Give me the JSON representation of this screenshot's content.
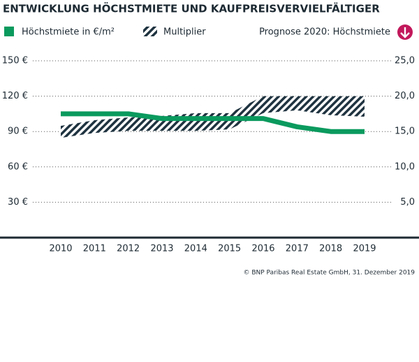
{
  "chart_data": {
    "type": "line",
    "title": "ENTWICKLUNG HÖCHSTMIETE UND KAUFPREISVERVIELFÄLTIGER",
    "categories": [
      "2010",
      "2011",
      "2012",
      "2013",
      "2014",
      "2015",
      "2016",
      "2017",
      "2018",
      "2019"
    ],
    "series": [
      {
        "name": "Höchstmiete in €/m²",
        "color": "#0a9a5e",
        "values": [
          105,
          105,
          105,
          101,
          101,
          101,
          101,
          94,
          90,
          90
        ]
      },
      {
        "name": "Multiplier",
        "type": "band",
        "color": "#1f3340",
        "axis": "y2",
        "low": [
          14.1,
          14.8,
          15.1,
          15.1,
          15.1,
          15.3,
          17.6,
          18.0,
          17.3,
          17.1
        ],
        "high": [
          15.8,
          16.6,
          17.0,
          17.2,
          17.6,
          17.6,
          20.0,
          20.0,
          20.0,
          20.0
        ]
      }
    ],
    "ylim": [
      0,
      150
    ],
    "yticks": [
      {
        "value": 30,
        "label": "30 €"
      },
      {
        "value": 60,
        "label": "60 €"
      },
      {
        "value": 90,
        "label": "90 €"
      },
      {
        "value": 120,
        "label": "120 €"
      },
      {
        "value": 150,
        "label": "150 €"
      }
    ],
    "y2lim": [
      0,
      25
    ],
    "y2ticks": [
      {
        "value": 5,
        "label": "5,0"
      },
      {
        "value": 10,
        "label": "10,0"
      },
      {
        "value": 15,
        "label": "15,0"
      },
      {
        "value": 20,
        "label": "20,0"
      },
      {
        "value": 25,
        "label": "25,0"
      }
    ],
    "grid": true,
    "forecast_label": "Prognose 2020: Höchstmiete",
    "source": "© BNP Paribas Real Estate GmbH, 31. Dezember 2019"
  }
}
